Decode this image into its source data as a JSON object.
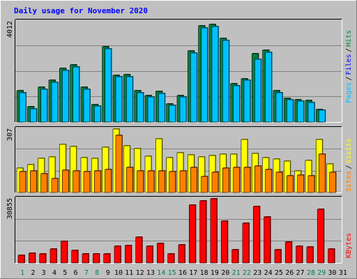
{
  "chart_data": [
    {
      "type": "bar",
      "title": "Daily usage for November 2020",
      "categories": [
        "1",
        "2",
        "3",
        "4",
        "5",
        "6",
        "7",
        "8",
        "9",
        "10",
        "11",
        "12",
        "13",
        "14",
        "15",
        "16",
        "17",
        "18",
        "19",
        "20",
        "21",
        "22",
        "23",
        "24",
        "25",
        "26",
        "27",
        "28",
        "29",
        "30",
        "31"
      ],
      "weekend_days": [
        "1",
        "7",
        "8",
        "14",
        "15",
        "21",
        "22",
        "28",
        "29"
      ],
      "ymax_label": "4012",
      "ylim": [
        0,
        4012
      ],
      "series": [
        {
          "name": "Hits",
          "color": "#008040",
          "values": [
            1240,
            600,
            1400,
            1680,
            2150,
            2280,
            1400,
            700,
            3000,
            1880,
            1900,
            1250,
            1060,
            1220,
            730,
            1070,
            2850,
            3850,
            3910,
            3350,
            1520,
            1740,
            2720,
            2860,
            1240,
            960,
            900,
            860,
            510,
            0,
            0
          ]
        },
        {
          "name": "Files",
          "color": "#0000ff",
          "values": [
            0,
            0,
            0,
            0,
            0,
            0,
            0,
            0,
            0,
            0,
            0,
            0,
            0,
            0,
            0,
            0,
            0,
            0,
            0,
            0,
            0,
            0,
            0,
            0,
            0,
            0,
            0,
            0,
            0,
            0,
            0
          ]
        },
        {
          "name": "Pages",
          "color": "#00c0ff",
          "values": [
            1160,
            530,
            1320,
            1590,
            2060,
            2200,
            1320,
            640,
            2920,
            1800,
            1820,
            1180,
            990,
            1150,
            670,
            1000,
            2760,
            3770,
            3830,
            3270,
            1440,
            1670,
            2500,
            2790,
            1170,
            890,
            830,
            790,
            460,
            0,
            0
          ]
        }
      ],
      "legend": [
        "Pages",
        "Files",
        "Hits"
      ],
      "legend_separator": "/"
    },
    {
      "type": "bar",
      "ymax_label": "307",
      "ylim": [
        0,
        307
      ],
      "series": [
        {
          "name": "Visits",
          "color": "#ffff00",
          "values": [
            118,
            134,
            164,
            171,
            232,
            223,
            170,
            166,
            220,
            307,
            227,
            214,
            175,
            260,
            169,
            193,
            182,
            172,
            179,
            184,
            186,
            258,
            190,
            168,
            163,
            152,
            103,
            155,
            255,
            140,
            0
          ]
        },
        {
          "name": "Sites",
          "color": "#ff8000",
          "values": [
            100,
            104,
            90,
            68,
            109,
            104,
            100,
            104,
            113,
            275,
            120,
            104,
            104,
            104,
            102,
            103,
            120,
            76,
            98,
            118,
            121,
            121,
            127,
            113,
            97,
            80,
            83,
            80,
            184,
            97,
            0
          ]
        }
      ],
      "legend": [
        "Sites",
        "Visits"
      ],
      "legend_separator": "/"
    },
    {
      "type": "bar",
      "ymax_label": "30855",
      "ylim": [
        0,
        30855
      ],
      "series": [
        {
          "name": "KBytes",
          "color": "#ff0000",
          "values": [
            3700,
            4750,
            4400,
            6800,
            10300,
            6100,
            4350,
            4450,
            4450,
            8000,
            8350,
            12500,
            7950,
            9350,
            4450,
            8650,
            27900,
            29700,
            31000,
            20000,
            6500,
            19100,
            27000,
            22100,
            6450,
            10200,
            8000,
            7700,
            25800,
            6750,
            0
          ]
        }
      ],
      "legend": [
        "KBytes"
      ]
    }
  ]
}
